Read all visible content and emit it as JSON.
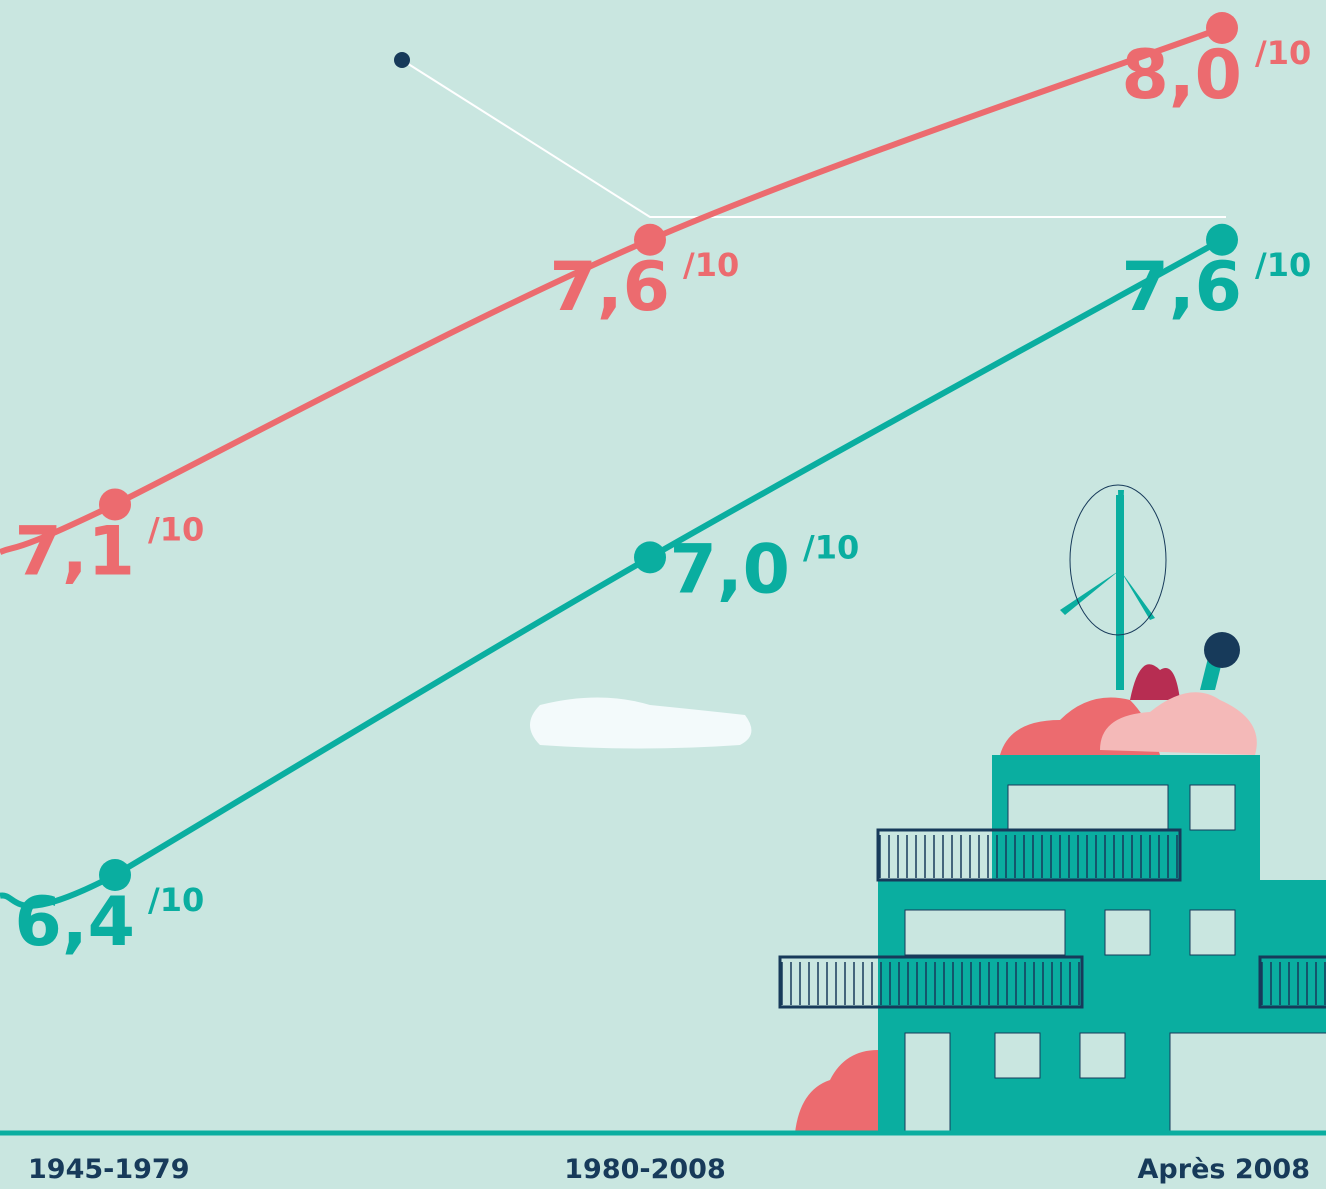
{
  "chart_data": {
    "type": "line",
    "categories": [
      "1945-1979",
      "1980-2008",
      "Après 2008"
    ],
    "value_suffix": "/10",
    "series": [
      {
        "color": "#ec6b6f",
        "values": [
          7.1,
          7.6,
          8.0
        ],
        "value_labels": [
          "7,1",
          "7,6",
          "8,0"
        ]
      },
      {
        "color": "#0aaea0",
        "values": [
          6.4,
          7.0,
          7.6
        ],
        "value_labels": [
          "6,4",
          "7,0",
          "7,6"
        ]
      }
    ]
  }
}
